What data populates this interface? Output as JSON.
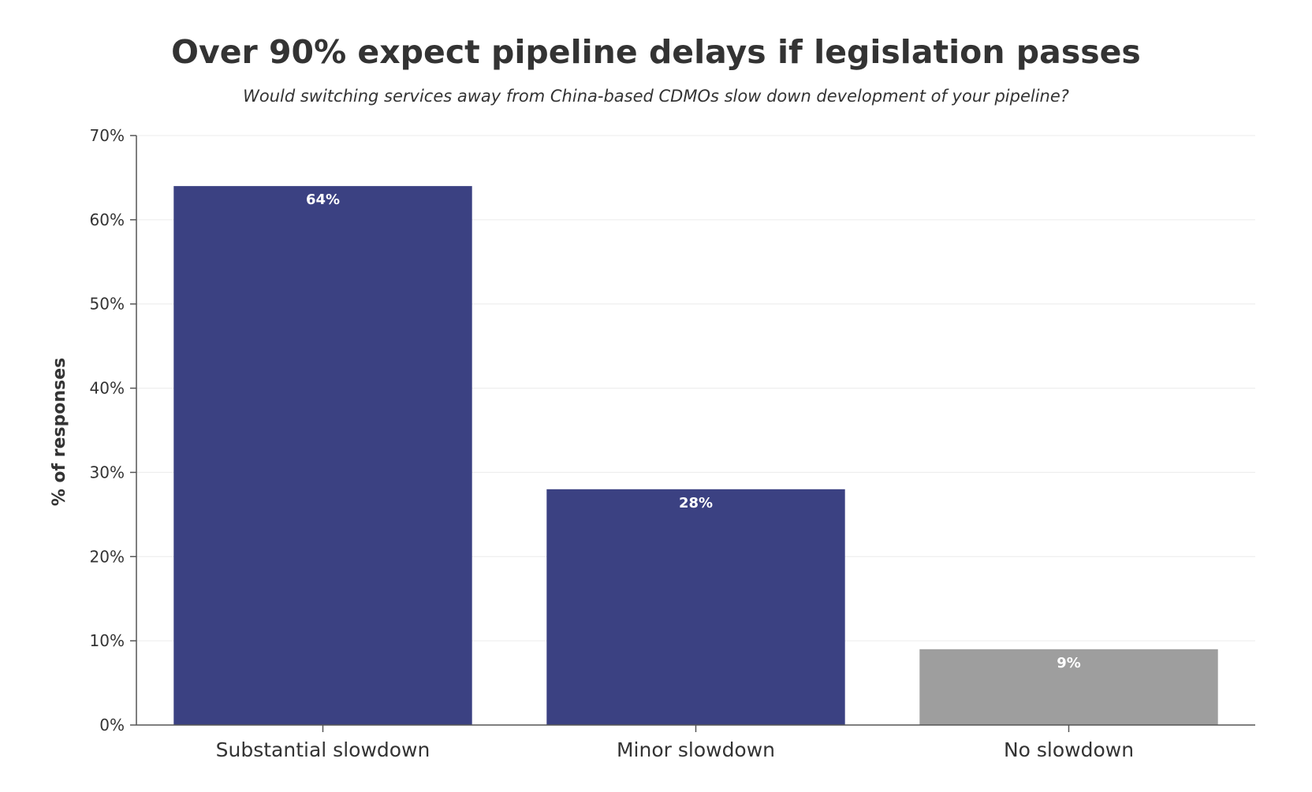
{
  "chart_data": {
    "type": "bar",
    "title": "Over 90% expect pipeline delays if legislation passes",
    "subtitle": "Would switching services away from China-based CDMOs slow down development of your pipeline?",
    "ylabel": "% of responses",
    "xlabel": "",
    "categories": [
      "Substantial slowdown",
      "Minor slowdown",
      "No slowdown"
    ],
    "values": [
      64,
      28,
      9
    ],
    "data_labels": [
      "64%",
      "28%",
      "9%"
    ],
    "bar_colors": [
      "#3b4182",
      "#3b4182",
      "#9e9e9e"
    ],
    "ylim": [
      0,
      70
    ],
    "yticks": [
      0,
      10,
      20,
      30,
      40,
      50,
      60,
      70
    ],
    "ytick_labels": [
      "0%",
      "10%",
      "20%",
      "30%",
      "40%",
      "50%",
      "60%",
      "70%"
    ],
    "grid": true,
    "legend": "none"
  }
}
